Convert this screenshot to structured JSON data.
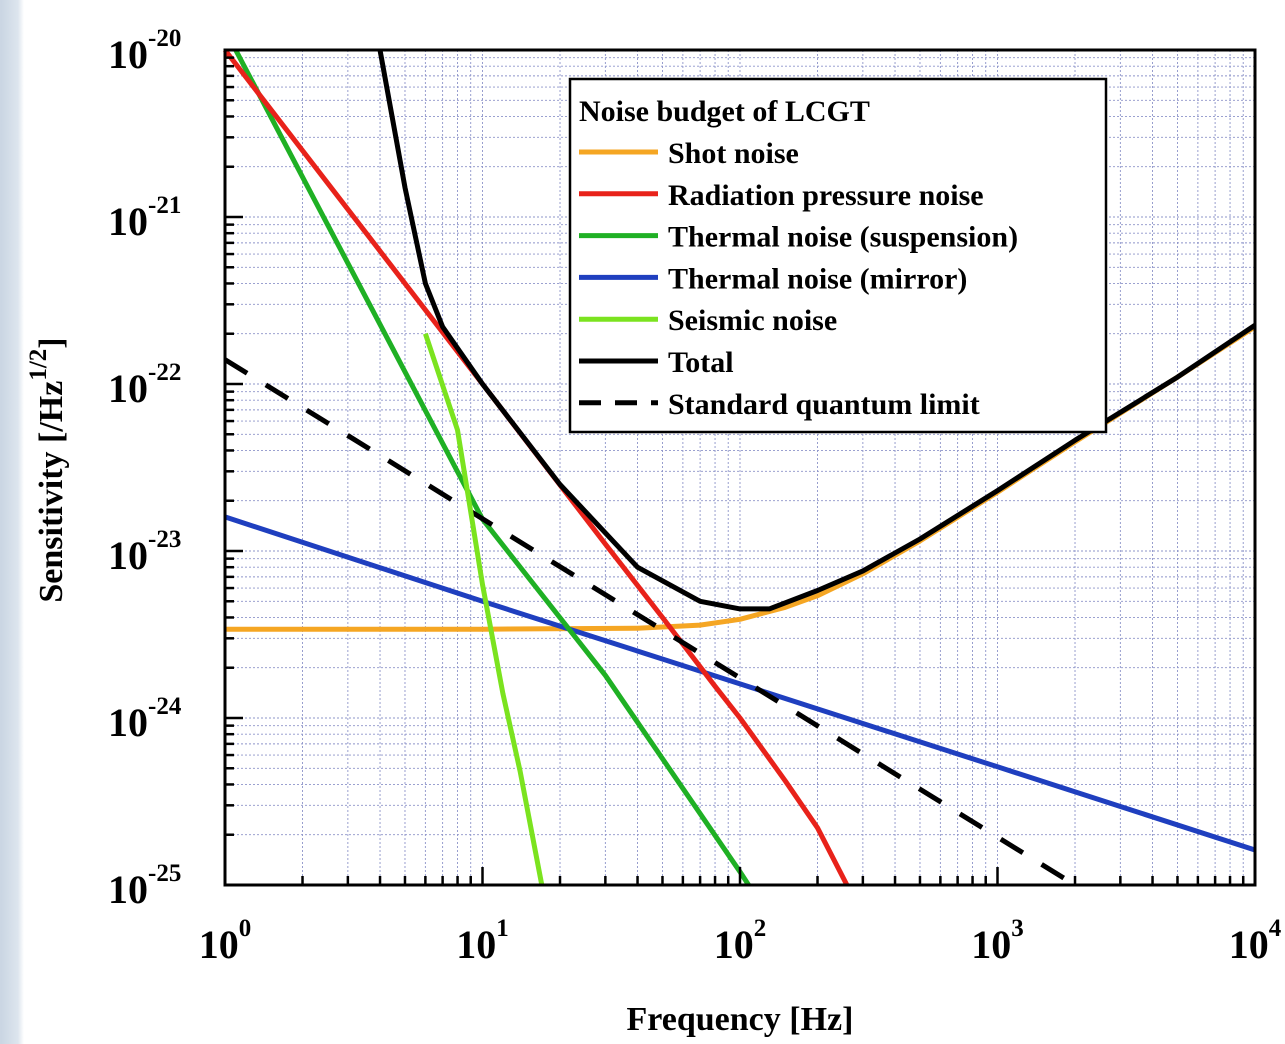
{
  "chart_data": {
    "type": "line",
    "title": "",
    "xlabel": "Frequency [Hz]",
    "ylabel": "Sensitivity [/Hz^1/2]",
    "ylabel_base": "Sensitivity [/Hz",
    "ylabel_exp": "1/2",
    "ylabel_close": "]",
    "x_scale": "log",
    "y_scale": "log",
    "xlim": [
      1,
      10000
    ],
    "ylim": [
      1e-25,
      1e-20
    ],
    "grid": true,
    "legend_title": "Noise budget of LCGT",
    "legend_position": "top-right",
    "x_ticks": [
      {
        "value": 1,
        "base": "10",
        "exp": "0"
      },
      {
        "value": 10,
        "base": "10",
        "exp": "1"
      },
      {
        "value": 100,
        "base": "10",
        "exp": "2"
      },
      {
        "value": 1000,
        "base": "10",
        "exp": "3"
      },
      {
        "value": 10000,
        "base": "10",
        "exp": "4"
      }
    ],
    "y_ticks": [
      {
        "value": 1e-20,
        "base": "10",
        "exp": "-20"
      },
      {
        "value": 1e-21,
        "base": "10",
        "exp": "-21"
      },
      {
        "value": 1e-22,
        "base": "10",
        "exp": "-22"
      },
      {
        "value": 1e-23,
        "base": "10",
        "exp": "-23"
      },
      {
        "value": 1e-24,
        "base": "10",
        "exp": "-24"
      },
      {
        "value": 1e-25,
        "base": "10",
        "exp": "-25"
      }
    ],
    "series": [
      {
        "name": "Shot noise",
        "color": "#f5a623",
        "dash": "solid",
        "points": [
          [
            1,
            3.4e-24
          ],
          [
            10,
            3.4e-24
          ],
          [
            40,
            3.45e-24
          ],
          [
            70,
            3.6e-24
          ],
          [
            100,
            3.9e-24
          ],
          [
            150,
            4.6e-24
          ],
          [
            200,
            5.4e-24
          ],
          [
            300,
            7.3e-24
          ],
          [
            500,
            1.15e-23
          ],
          [
            1000,
            2.25e-23
          ],
          [
            2000,
            4.5e-23
          ],
          [
            5000,
            1.1e-22
          ],
          [
            10000,
            2.2e-22
          ]
        ]
      },
      {
        "name": "Radiation pressure noise",
        "color": "#e8221a",
        "dash": "solid",
        "points": [
          [
            1,
            1e-20
          ],
          [
            10,
            1e-22
          ],
          [
            30,
            1.1e-23
          ],
          [
            50,
            4e-24
          ],
          [
            80,
            1.55e-24
          ],
          [
            100,
            1e-24
          ],
          [
            150,
            4.2e-25
          ],
          [
            200,
            2.2e-25
          ],
          [
            260,
            1e-25
          ]
        ]
      },
      {
        "name": "Thermal noise (suspension)",
        "color": "#1fb024",
        "dash": "solid",
        "points": [
          [
            1.1,
            1e-20
          ],
          [
            10,
            1.55e-23
          ],
          [
            30,
            1.8e-24
          ],
          [
            100,
            1.2e-25
          ],
          [
            108,
            1e-25
          ]
        ]
      },
      {
        "name": "Thermal noise (mirror)",
        "color": "#1f3fbf",
        "dash": "solid",
        "points": [
          [
            1,
            1.6e-23
          ],
          [
            10,
            5e-24
          ],
          [
            100,
            1.6e-24
          ],
          [
            1000,
            5.1e-25
          ],
          [
            10000,
            1.62e-25
          ]
        ]
      },
      {
        "name": "Seismic noise",
        "color": "#7be31f",
        "dash": "solid",
        "points": [
          [
            6,
            2e-22
          ],
          [
            8,
            5.3e-23
          ],
          [
            10,
            6.3e-24
          ],
          [
            12,
            1.4e-24
          ],
          [
            14,
            4.8e-25
          ],
          [
            17,
            1e-25
          ]
        ]
      },
      {
        "name": "Total",
        "color": "#000000",
        "dash": "solid",
        "points": [
          [
            4,
            1e-20
          ],
          [
            5,
            1.5e-21
          ],
          [
            6,
            4e-22
          ],
          [
            7,
            2.2e-22
          ],
          [
            10,
            1e-22
          ],
          [
            20,
            2.5e-23
          ],
          [
            40,
            8e-24
          ],
          [
            70,
            5e-24
          ],
          [
            100,
            4.5e-24
          ],
          [
            130,
            4.5e-24
          ],
          [
            200,
            5.8e-24
          ],
          [
            300,
            7.6e-24
          ],
          [
            500,
            1.18e-23
          ],
          [
            1000,
            2.3e-23
          ],
          [
            2000,
            4.6e-23
          ],
          [
            5000,
            1.1e-22
          ],
          [
            10000,
            2.25e-22
          ]
        ]
      },
      {
        "name": "Standard quantum limit",
        "color": "#000000",
        "dash": "dashed",
        "points": [
          [
            1,
            1.4e-22
          ],
          [
            2000,
            1e-25
          ]
        ]
      }
    ]
  }
}
